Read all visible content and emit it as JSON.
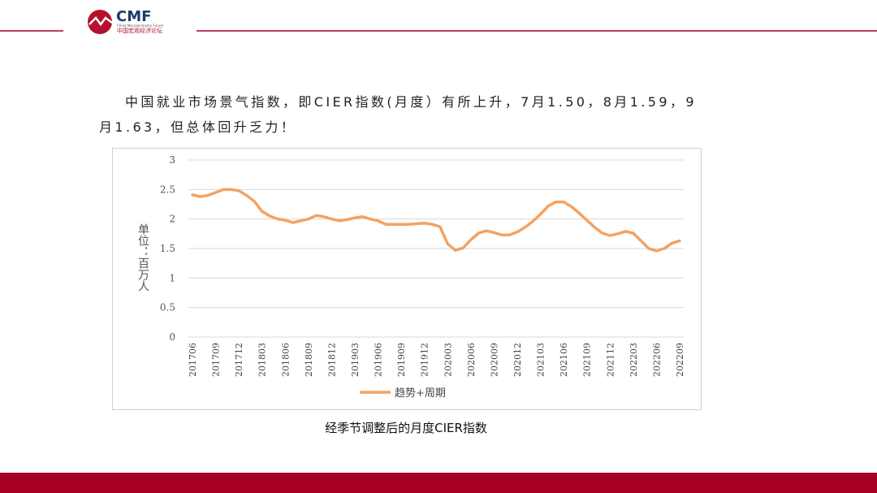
{
  "header": {
    "logo_text": "CMF",
    "logo_en": "China Macroeconomy Forum",
    "logo_cn": "中国宏观经济论坛"
  },
  "paragraph": "中国就业市场景气指数，即CIER指数(月度）有所上升，7月1.50，8月1.59，9月1.63，但总体回升乏力！",
  "caption": "经季节调整后的月度CIER指数",
  "chart_data": {
    "type": "line",
    "ylabel": "单位：百万人",
    "categories": [
      "201706",
      null,
      null,
      "201709",
      null,
      null,
      "201712",
      null,
      null,
      "201803",
      null,
      null,
      "201806",
      null,
      null,
      "201809",
      null,
      null,
      "201812",
      null,
      null,
      "201903",
      null,
      null,
      "201906",
      null,
      null,
      "201909",
      null,
      null,
      "201912",
      null,
      null,
      "202003",
      null,
      null,
      "202006",
      null,
      null,
      "202009",
      null,
      null,
      "202012",
      null,
      null,
      "202103",
      null,
      null,
      "202106",
      null,
      null,
      "202109",
      null,
      null,
      "202112",
      null,
      null,
      "202203",
      null,
      null,
      "202206",
      null,
      null,
      "202209"
    ],
    "series": [
      {
        "name": "趋势+周期",
        "color": "#f4a261",
        "values": [
          2.41,
          2.38,
          2.4,
          2.45,
          2.5,
          2.5,
          2.48,
          2.4,
          2.3,
          2.13,
          2.05,
          2.0,
          1.98,
          1.94,
          1.97,
          2.0,
          2.06,
          2.04,
          2.0,
          1.97,
          1.99,
          2.02,
          2.04,
          2.0,
          1.97,
          1.91,
          1.91,
          1.91,
          1.91,
          1.92,
          1.93,
          1.91,
          1.87,
          1.58,
          1.47,
          1.51,
          1.65,
          1.76,
          1.8,
          1.77,
          1.73,
          1.73,
          1.78,
          1.86,
          1.96,
          2.08,
          2.22,
          2.29,
          2.29,
          2.21,
          2.1,
          1.98,
          1.86,
          1.76,
          1.72,
          1.75,
          1.79,
          1.76,
          1.63,
          1.5,
          1.46,
          1.5,
          1.59,
          1.63
        ]
      }
    ],
    "ylim": [
      0,
      3
    ],
    "yticks": [
      0,
      0.5,
      1,
      1.5,
      2,
      2.5,
      3
    ],
    "grid": true,
    "legend": "bottom"
  }
}
